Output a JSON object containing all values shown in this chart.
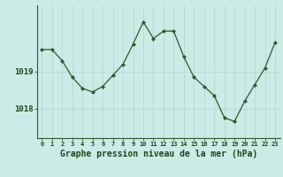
{
  "hours": [
    0,
    1,
    2,
    3,
    4,
    5,
    6,
    7,
    8,
    9,
    10,
    11,
    12,
    13,
    14,
    15,
    16,
    17,
    18,
    19,
    20,
    21,
    22,
    23
  ],
  "pressure": [
    1019.6,
    1019.6,
    1019.3,
    1018.85,
    1018.55,
    1018.45,
    1018.6,
    1018.9,
    1019.2,
    1019.75,
    1020.35,
    1019.9,
    1020.1,
    1020.1,
    1019.4,
    1018.85,
    1018.6,
    1018.35,
    1017.75,
    1017.65,
    1018.2,
    1018.65,
    1019.1,
    1019.8
  ],
  "line_color": "#2d5a2d",
  "marker_color": "#2d5a2d",
  "bg_color": "#cceae6",
  "grid_color": "#b8d8d4",
  "title": "Graphe pression niveau de la mer (hPa)",
  "ylabel_ticks": [
    1018,
    1019
  ],
  "ylim": [
    1017.2,
    1020.8
  ],
  "xlim": [
    -0.5,
    23.5
  ],
  "title_color": "#1a4a1a",
  "title_fontsize": 7.0,
  "xtick_fontsize": 5.0,
  "ytick_fontsize": 6.5
}
